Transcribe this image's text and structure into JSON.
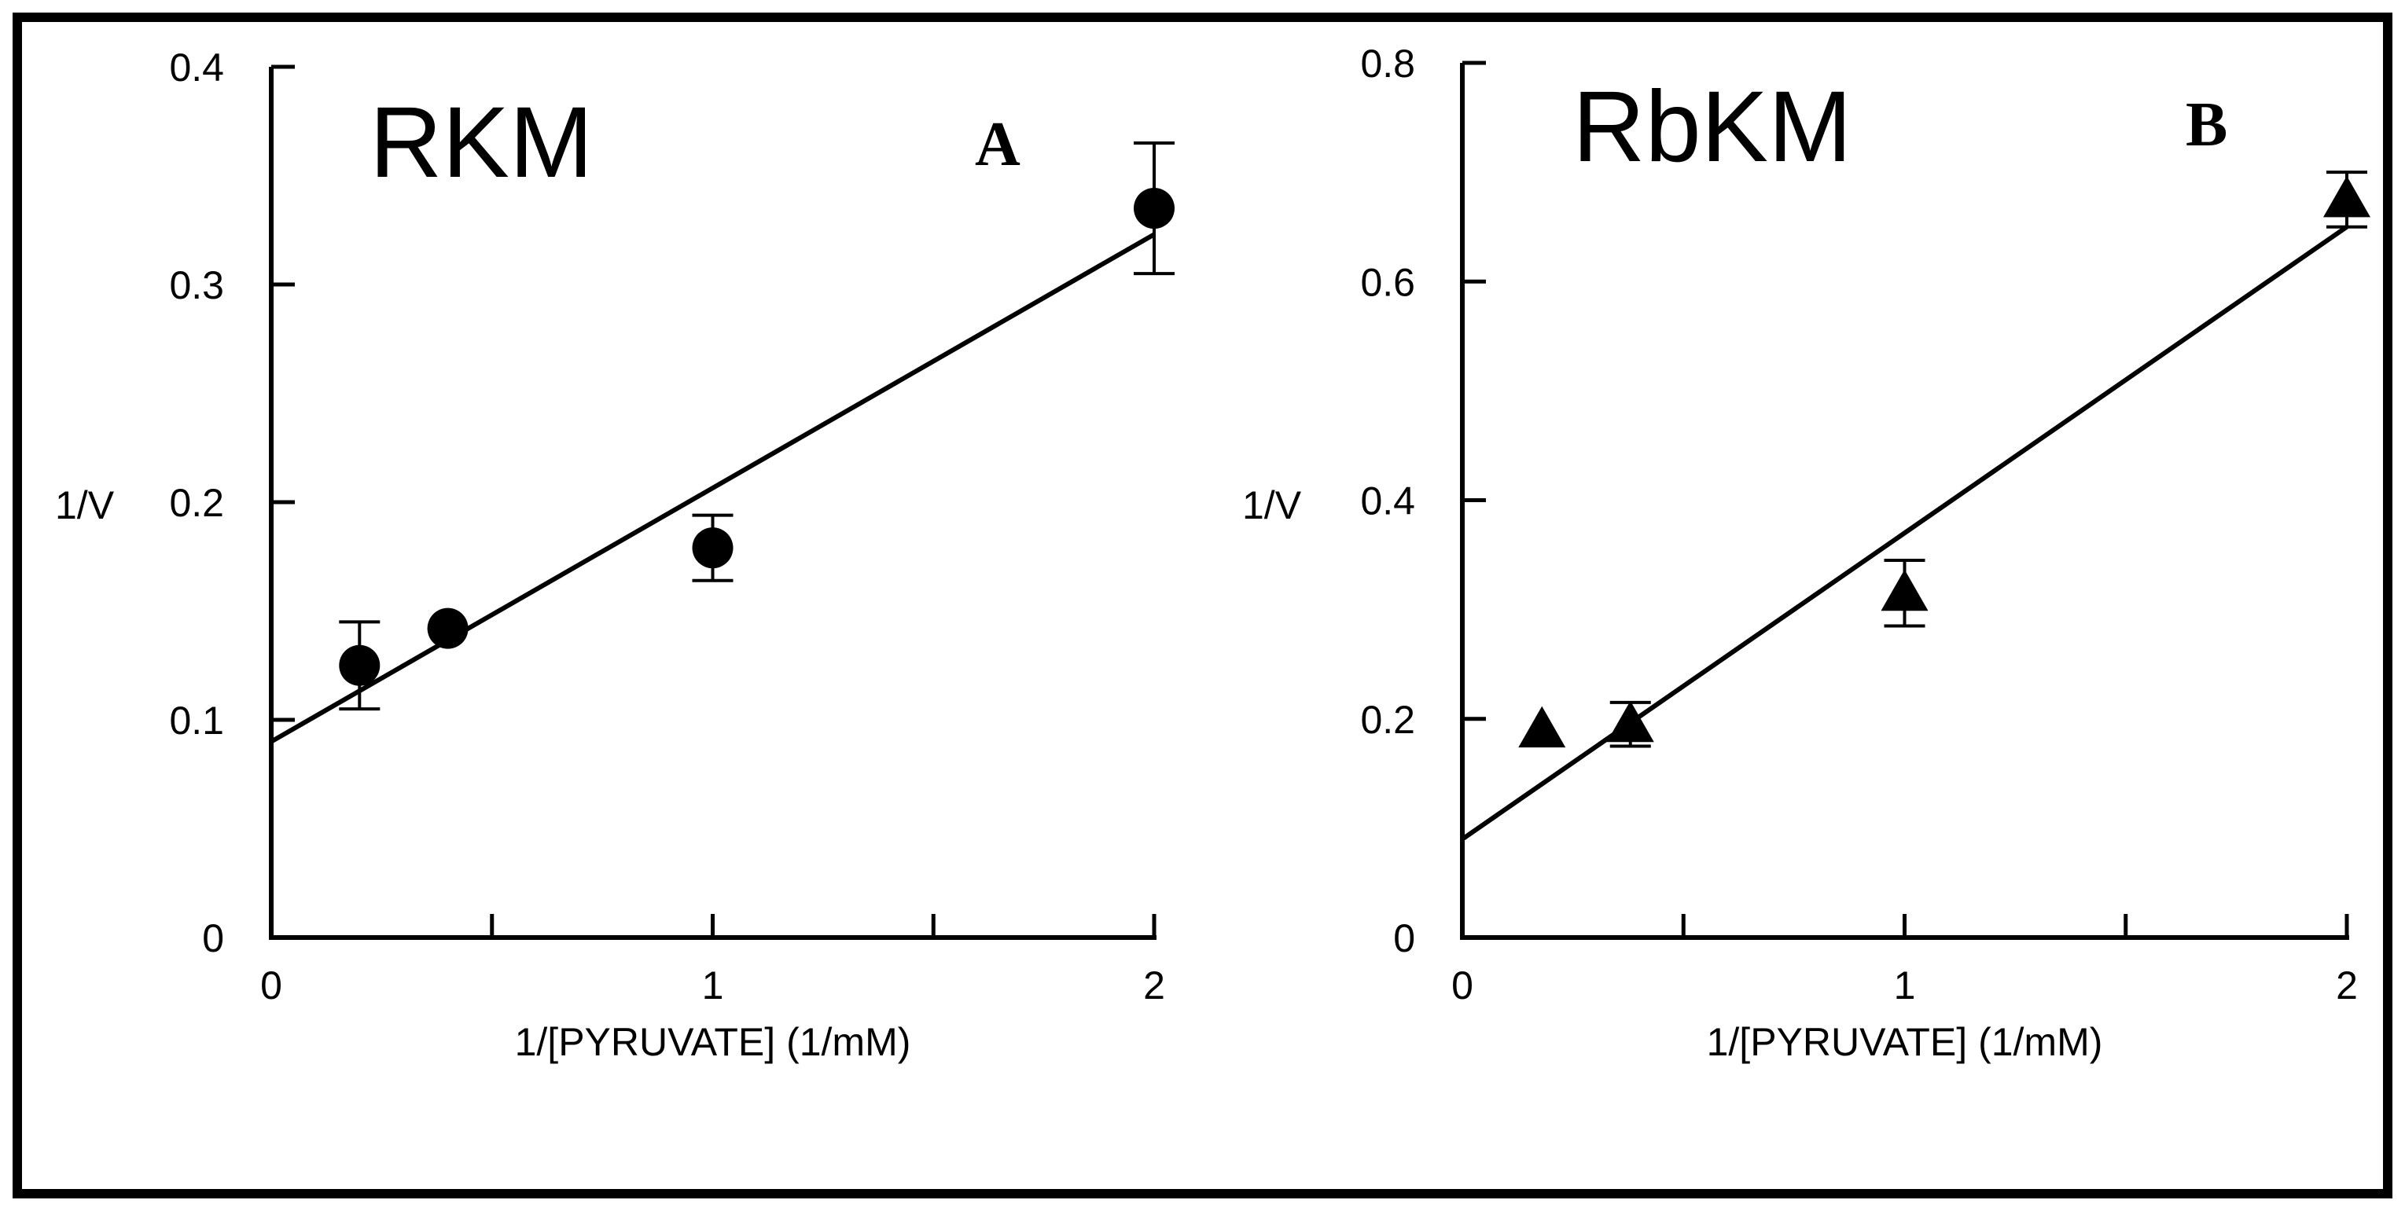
{
  "chart_data": [
    {
      "type": "scatter",
      "title": "RKM",
      "panel_label": "A",
      "xlabel": "1/[PYRUVATE]  (1/mM)",
      "ylabel": "1/V",
      "xlim": [
        0,
        2
      ],
      "ylim": [
        0,
        0.4
      ],
      "x_ticks": [
        0,
        0.5,
        1,
        1.5,
        2
      ],
      "x_tick_labels": [
        "0",
        "",
        "1",
        "",
        "2"
      ],
      "y_ticks": [
        0,
        0.1,
        0.2,
        0.3,
        0.4
      ],
      "y_tick_labels": [
        "0",
        "0.1",
        "0.2",
        "0.3",
        "0.4"
      ],
      "marker": "circle",
      "points": [
        {
          "x": 0.2,
          "y": 0.125,
          "err": 0.02
        },
        {
          "x": 0.4,
          "y": 0.142,
          "err": 0.0
        },
        {
          "x": 1.0,
          "y": 0.179,
          "err": 0.015
        },
        {
          "x": 2.0,
          "y": 0.335,
          "err": 0.03
        }
      ],
      "fit_line": {
        "x": [
          0,
          2
        ],
        "y": [
          0.09,
          0.323
        ]
      }
    },
    {
      "type": "scatter",
      "title": "RbKM",
      "panel_label": "B",
      "xlabel": "1/[PYRUVATE]  (1/mM)",
      "ylabel": "1/V",
      "xlim": [
        0,
        2
      ],
      "ylim": [
        0,
        0.8
      ],
      "x_ticks": [
        0,
        0.5,
        1,
        1.5,
        2
      ],
      "x_tick_labels": [
        "0",
        "",
        "1",
        "",
        "2"
      ],
      "y_ticks": [
        0,
        0.2,
        0.4,
        0.6,
        0.8
      ],
      "y_tick_labels": [
        "0",
        "0.2",
        "0.4",
        "0.6",
        "0.8"
      ],
      "marker": "triangle",
      "points": [
        {
          "x": 0.18,
          "y": 0.19,
          "err": 0.0
        },
        {
          "x": 0.38,
          "y": 0.195,
          "err": 0.02
        },
        {
          "x": 1.0,
          "y": 0.315,
          "err": 0.03
        },
        {
          "x": 2.0,
          "y": 0.675,
          "err": 0.025
        }
      ],
      "fit_line": {
        "x": [
          0,
          2
        ],
        "y": [
          0.09,
          0.65
        ]
      }
    }
  ]
}
